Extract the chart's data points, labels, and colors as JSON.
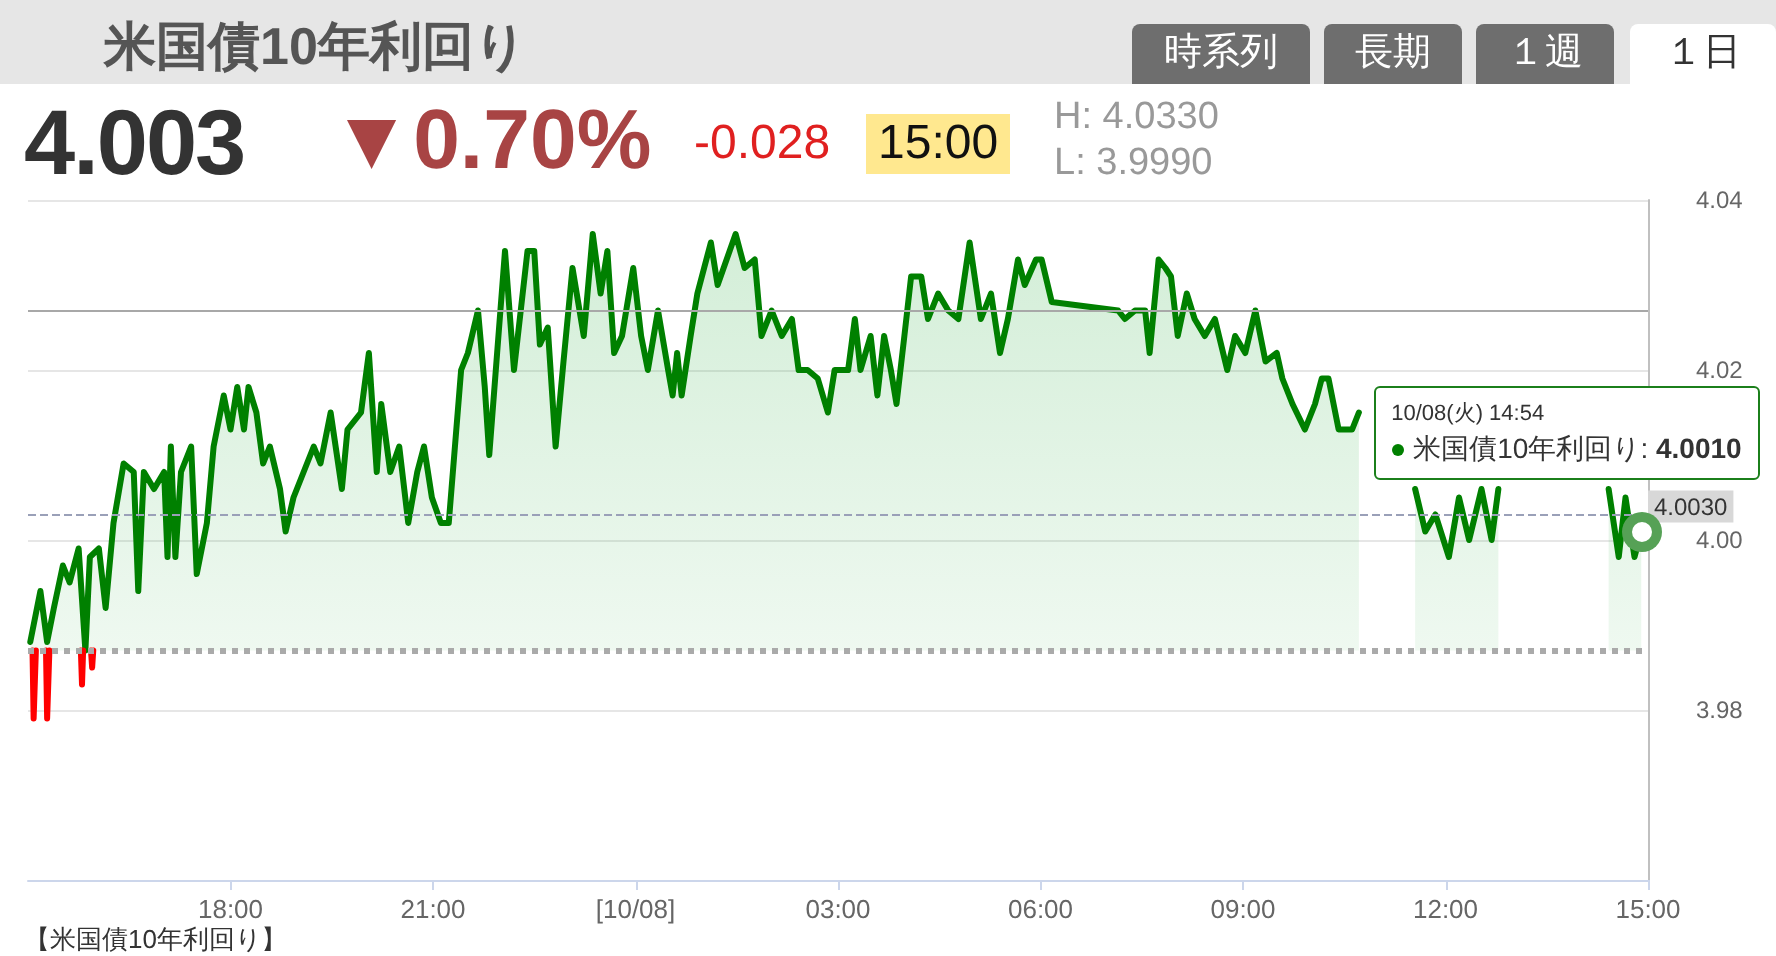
{
  "chart_data": {
    "type": "area",
    "title": "米国債10年利回り",
    "annotations": [
      "時系列",
      "長期",
      "１週",
      "１日",
      "4.003",
      "▼0.70%",
      "-0.028",
      "15:00",
      "H: 4.0330",
      "L: 3.9990",
      "【米国債10年利回り】",
      {
        "text": "10/08(火) 14:54\n米国債10年利回り: 4.0010",
        "x": "--10-08T14:54",
        "y": 4.001
      }
    ],
    "series": [
      {
        "color": "#008000",
        "x": [
          "--10-07T15:02",
          "--10-07T15:05",
          "--10-07T15:11",
          "--10-07T15:17",
          "--10-07T15:23",
          "--10-07T15:31",
          "--10-07T15:37",
          "--10-07T15:45",
          "--10-07T15:51",
          "--10-07T15:55",
          "--10-07T16:03",
          "--10-07T16:09",
          "--10-07T16:16",
          "--10-07T16:25",
          "--10-07T16:34",
          "--10-07T16:38",
          "--10-07T16:43",
          "--10-07T16:52",
          "--10-07T17:01",
          "--10-07T17:04",
          "--10-07T17:07",
          "--10-07T17:11",
          "--10-07T17:16",
          "--10-07T17:25",
          "--10-07T17:30",
          "--10-07T17:39",
          "--10-07T17:45",
          "--10-07T17:54",
          "--10-07T18:00",
          "--10-07T18:06",
          "--10-07T18:12",
          "--10-07T18:16",
          "--10-07T18:23",
          "--10-07T18:29",
          "--10-07T18:35",
          "--10-07T18:44",
          "--10-07T18:49",
          "--10-07T18:56",
          "--10-07T19:05",
          "--10-07T19:14",
          "--10-07T19:20",
          "--10-07T19:29",
          "--10-07T19:39",
          "--10-07T19:44",
          "--10-07T19:56",
          "--10-07T20:03",
          "--10-07T20:10",
          "--10-07T20:14",
          "--10-07T20:22",
          "--10-07T20:30",
          "--10-07T20:38",
          "--10-07T20:46",
          "--10-07T20:52",
          "--10-07T20:59",
          "--10-07T21:07",
          "--10-07T21:14",
          "--10-07T21:25",
          "--10-07T21:31",
          "--10-07T21:40",
          "--10-07T21:46",
          "--10-07T21:50",
          "--10-07T21:57",
          "--10-07T22:04",
          "--10-07T22:12",
          "--10-07T22:24",
          "--10-07T22:30",
          "--10-07T22:35",
          "--10-07T22:42",
          "--10-07T22:49",
          "--10-07T22:56",
          "--10-07T23:04",
          "--10-07T23:14",
          "--10-07T23:22",
          "--10-07T23:29",
          "--10-07T23:35",
          "--10-07T23:41",
          "--10-07T23:48",
          "--10-07T23:58",
          "--10-08T00:05",
          "--10-08T00:11",
          "--10-08T00:20",
          "--10-08T00:29",
          "--10-08T00:33",
          "--10-08T00:37",
          "--10-08T00:41",
          "--10-08T00:49",
          "--10-08T00:55",
          "--10-08T01:01",
          "--10-08T01:07",
          "--10-08T01:13",
          "--10-08T01:21",
          "--10-08T01:29",
          "--10-08T01:37",
          "--10-08T01:46",
          "--10-08T01:52",
          "--10-08T02:01",
          "--10-08T02:10",
          "--10-08T02:19",
          "--10-08T02:25",
          "--10-08T02:33",
          "--10-08T02:42",
          "--10-08T02:51",
          "--10-08T02:57",
          "--10-08T03:09",
          "--10-08T03:15",
          "--10-08T03:20",
          "--10-08T03:29",
          "--10-08T03:35",
          "--10-08T03:41",
          "--10-08T03:47",
          "--10-08T03:52",
          "--10-08T03:59",
          "--10-08T04:05",
          "--10-08T04:14",
          "--10-08T04:20",
          "--10-08T04:29",
          "--10-08T04:38",
          "--10-08T04:47",
          "--10-08T04:57",
          "--10-08T05:07",
          "--10-08T05:16",
          "--10-08T05:24",
          "--10-08T05:31",
          "--10-08T05:40",
          "--10-08T05:46",
          "--10-08T05:56",
          "--10-08T06:01",
          "--10-08T06:10",
          "--10-08T07:09",
          "--10-08T07:15",
          "--10-08T07:24",
          "--10-08T07:33",
          "--10-08T07:37",
          "--10-08T07:45",
          "--10-08T07:51",
          "--10-08T07:56",
          "--10-08T08:02",
          "--10-08T08:10",
          "--10-08T08:17",
          "--10-08T08:26",
          "--10-08T08:35",
          "--10-08T08:46",
          "--10-08T08:53",
          "--10-08T09:02",
          "--10-08T09:11",
          "--10-08T09:20",
          "--10-08T09:30",
          "--10-08T09:35",
          "--10-08T09:44",
          "--10-08T09:55",
          "--10-08T10:04",
          "--10-08T10:10",
          "--10-08T10:16",
          "--10-08T10:25",
          "--10-08T10:37",
          "--10-08T10:43",
          "--10-08T11:06",
          "--10-08T11:33",
          "--10-08T11:42",
          "--10-08T11:51",
          "--10-08T12:03",
          "--10-08T12:12",
          "--10-08T12:21",
          "--10-08T12:32",
          "--10-08T12:41",
          "--10-08T12:47",
          "--10-08T13:36",
          "--10-08T14:25",
          "--10-08T14:34",
          "--10-08T14:40",
          "--10-08T14:48",
          "--10-08T14:54"
        ],
        "values": [
          3.988,
          3.99,
          3.994,
          3.988,
          3.992,
          3.997,
          3.995,
          3.999,
          3.987,
          3.998,
          3.999,
          3.992,
          4.002,
          4.009,
          4.008,
          3.994,
          4.008,
          4.006,
          4.008,
          3.998,
          4.011,
          3.998,
          4.008,
          4.011,
          3.996,
          4.002,
          4.011,
          4.017,
          4.013,
          4.018,
          4.013,
          4.018,
          4.015,
          4.009,
          4.011,
          4.006,
          4.001,
          4.005,
          4.008,
          4.011,
          4.009,
          4.015,
          4.006,
          4.013,
          4.015,
          4.022,
          4.008,
          4.016,
          4.008,
          4.011,
          4.002,
          4.008,
          4.011,
          4.005,
          4.002,
          4.002,
          4.02,
          4.022,
          4.027,
          4.018,
          4.01,
          4.022,
          4.034,
          4.02,
          4.034,
          4.034,
          4.023,
          4.025,
          4.011,
          4.021,
          4.032,
          4.024,
          4.036,
          4.029,
          4.034,
          4.022,
          4.024,
          4.032,
          4.024,
          4.02,
          4.027,
          4.02,
          4.017,
          4.022,
          4.017,
          4.024,
          4.029,
          4.032,
          4.035,
          4.03,
          4.033,
          4.036,
          4.032,
          4.033,
          4.024,
          4.027,
          4.024,
          4.026,
          4.02,
          4.02,
          4.019,
          4.015,
          4.02,
          4.02,
          4.026,
          4.02,
          4.024,
          4.017,
          4.024,
          4.02,
          4.016,
          4.024,
          4.031,
          4.031,
          4.026,
          4.029,
          4.027,
          4.026,
          4.035,
          4.026,
          4.029,
          4.022,
          4.026,
          4.033,
          4.03,
          4.033,
          4.033,
          4.028,
          4.027,
          4.026,
          4.027,
          4.027,
          4.022,
          4.033,
          4.032,
          4.031,
          4.024,
          4.029,
          4.026,
          4.024,
          4.026,
          4.02,
          4.024,
          4.022,
          4.027,
          4.021,
          4.022,
          4.019,
          4.016,
          4.013,
          4.016,
          4.019,
          4.019,
          4.013,
          4.013,
          4.015,
          null,
          4.006,
          4.001,
          4.003,
          3.998,
          4.005,
          4.0,
          4.006,
          4.0,
          4.006,
          null,
          4.006,
          3.998,
          4.005,
          3.998,
          4.001
        ]
      },
      {
        "type": "line",
        "color": "#ff0000",
        "x": [
          "--10-07T15:04",
          "--10-07T15:05",
          "--10-07T15:06",
          "--10-07T15:07",
          "--10-07T15:12",
          "--10-07T15:16",
          "--10-07T15:17",
          "--10-07T15:18",
          "--10-07T15:19",
          "--10-07T15:30",
          "--10-07T15:47",
          "--10-07T15:48",
          "--10-07T15:49",
          "--10-07T15:54",
          "--10-07T15:56",
          "--10-07T15:57",
          "--10-07T15:58"
        ],
        "values": [
          3.987,
          3.979,
          3.979,
          3.987,
          null,
          3.987,
          3.979,
          3.979,
          3.987,
          null,
          3.987,
          3.983,
          3.987,
          null,
          3.987,
          3.985,
          3.987
        ]
      }
    ],
    "xlim": [
      "--10-07T15:00",
      "--10-08T15:00"
    ],
    "xticks": [
      {
        "value": "--10-07T18:00",
        "label": "18:00"
      },
      {
        "value": "--10-07T21:00",
        "label": "21:00"
      },
      {
        "value": "--10-08T00:00",
        "label": "[10/08]"
      },
      {
        "value": "--10-08T03:00",
        "label": "03:00"
      },
      {
        "value": "--10-08T06:00",
        "label": "06:00"
      },
      {
        "value": "--10-08T09:00",
        "label": "09:00"
      },
      {
        "value": "--10-08T12:00",
        "label": "12:00"
      },
      {
        "value": "--10-08T15:00",
        "label": "15:00"
      }
    ],
    "ylim": [
      3.96,
      4.04
    ],
    "yticks": [
      3.98,
      {
        "value": 4,
        "label": "4.00"
      },
      4.02,
      4.04
    ],
    "grid": "y",
    "ref_lines": [
      {
        "axis": "y",
        "value": 4.027,
        "color": "#a8a8a8",
        "line_style": "solid"
      },
      {
        "axis": "y",
        "value": 4.003,
        "label": "4.0030",
        "color": "#9aa0b8",
        "line_style": "dashed"
      },
      {
        "axis": "y",
        "value": 3.987,
        "color": "#aaaaaa",
        "line_style": "dotted"
      }
    ]
  }
}
